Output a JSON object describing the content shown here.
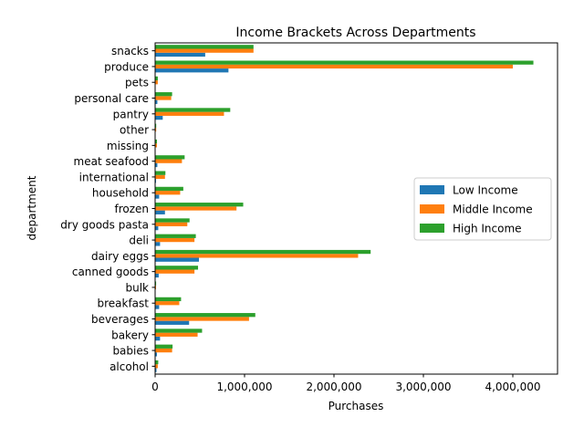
{
  "chart_data": {
    "type": "bar",
    "orientation": "horizontal",
    "title": "Income Brackets Across Departments",
    "xlabel": "Purchases",
    "ylabel": "department",
    "xlim": [
      0,
      4500000
    ],
    "xticks": [
      0,
      1000000,
      2000000,
      3000000,
      4000000
    ],
    "xtick_labels": [
      "0",
      "1,000,000",
      "2,000,000",
      "3,000,000",
      "4,000,000"
    ],
    "grid": false,
    "legend_position": "center-right",
    "categories": [
      "alcohol",
      "babies",
      "bakery",
      "beverages",
      "breakfast",
      "bulk",
      "canned goods",
      "dairy eggs",
      "deli",
      "dry goods pasta",
      "frozen",
      "household",
      "international",
      "meat seafood",
      "missing",
      "other",
      "pantry",
      "personal care",
      "pets",
      "produce",
      "snacks"
    ],
    "series": [
      {
        "name": "Low Income",
        "color": "#1f77b4",
        "values": [
          15000,
          20000,
          55000,
          380000,
          45000,
          3000,
          40000,
          490000,
          55000,
          35000,
          110000,
          45000,
          10000,
          25000,
          5000,
          3000,
          85000,
          25000,
          5000,
          820000,
          560000
        ]
      },
      {
        "name": "Middle Income",
        "color": "#ff7f0e",
        "values": [
          30000,
          190000,
          475000,
          1050000,
          270000,
          10000,
          440000,
          2270000,
          440000,
          360000,
          910000,
          280000,
          110000,
          300000,
          20000,
          12000,
          770000,
          180000,
          30000,
          4000000,
          1100000
        ]
      },
      {
        "name": "High Income",
        "color": "#2ca02c",
        "values": [
          35000,
          195000,
          525000,
          1120000,
          290000,
          11000,
          480000,
          2410000,
          455000,
          385000,
          985000,
          315000,
          115000,
          330000,
          20000,
          12000,
          840000,
          190000,
          30000,
          4230000,
          1100000
        ]
      }
    ]
  }
}
